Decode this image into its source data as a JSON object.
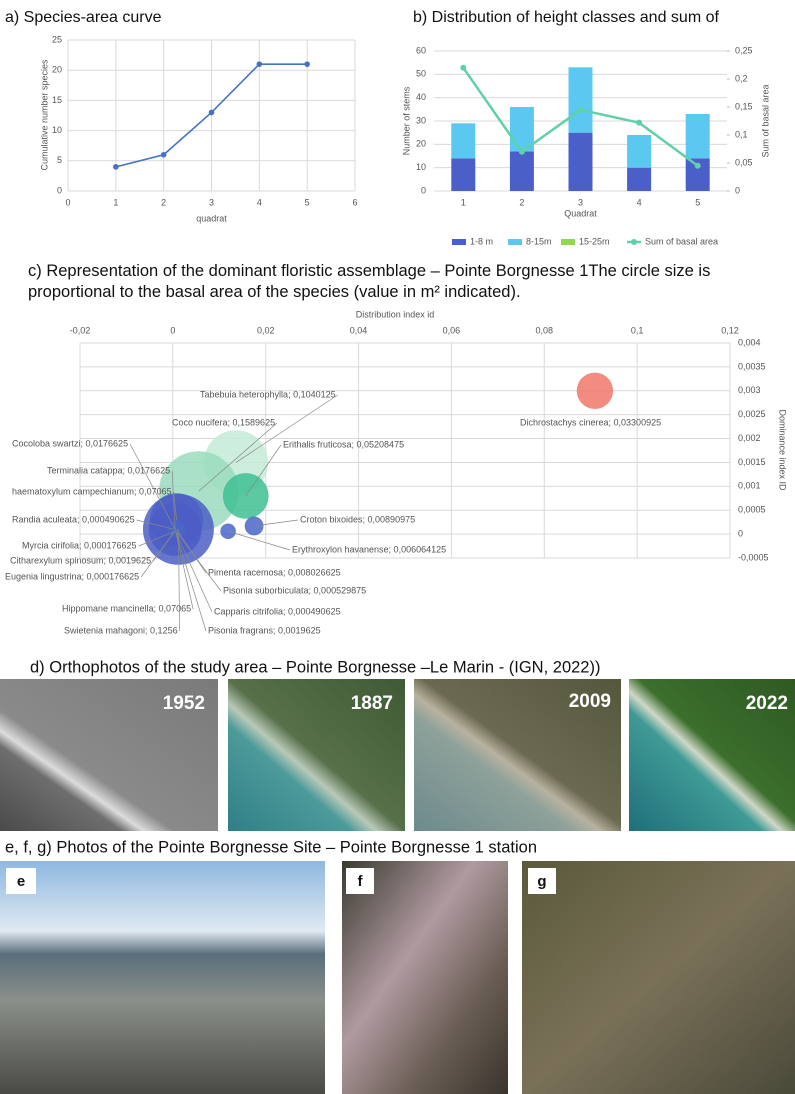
{
  "chart_data": [
    {
      "type": "line",
      "title": "a) Species-area curve",
      "x_label": "quadrat",
      "y_label": "Cumulative number species",
      "x": [
        1,
        2,
        3,
        4,
        5
      ],
      "values": [
        4,
        6,
        13,
        21,
        21
      ],
      "color": "#4472c4",
      "xlim": [
        0,
        6
      ],
      "xticks": [
        0,
        1,
        2,
        3,
        4,
        5,
        6
      ],
      "ylim": [
        0,
        25
      ],
      "yticks": [
        0,
        5,
        10,
        15,
        20,
        25
      ],
      "grid": true
    },
    {
      "type": "bar",
      "title": "b) Distribution of height classes and sum of",
      "x_label": "Quadrat",
      "y_label": "Number of stems",
      "y2_label": "Sum of basal area",
      "categories": [
        "1",
        "2",
        "3",
        "4",
        "5"
      ],
      "series": [
        {
          "name": "1-8 m",
          "color": "#4a5fc8",
          "values": [
            14,
            17,
            25,
            10,
            14
          ]
        },
        {
          "name": "8-15m",
          "color": "#5ac8f0",
          "values": [
            15,
            19,
            28,
            14,
            19
          ]
        },
        {
          "name": "15-25m",
          "color": "#8fd65a",
          "values": [
            0,
            0,
            0,
            0,
            0
          ]
        },
        {
          "name": "Sum of basal area",
          "color": "#5fd0a8",
          "type": "line",
          "axis": "y2",
          "values": [
            0.22,
            0.07,
            0.145,
            0.122,
            0.045
          ]
        }
      ],
      "ylim": [
        0,
        60
      ],
      "yticks": [
        0,
        10,
        20,
        30,
        40,
        50,
        60
      ],
      "y2lim": [
        0,
        0.25
      ],
      "y2ticks": [
        0,
        {
          "value": 0.05,
          "label": "0,05"
        },
        {
          "value": 0.1,
          "label": "0,1"
        },
        {
          "value": 0.15,
          "label": "0,15"
        },
        {
          "value": 0.2,
          "label": "0,2"
        },
        {
          "value": 0.25,
          "label": "0,25"
        }
      ],
      "grid": true,
      "legend": "bottom"
    },
    {
      "type": "bubble",
      "title": "c) Representation of the dominant floristic assemblage – Pointe Borgnesse 1The circle size is proportional to the basal area of the species (value in m² indicated).",
      "x_label": "Distribution index id",
      "y_label": "Dominance index ID",
      "x": [
        0.0136,
        0.0056,
        0.0157,
        0.0005,
        0.0005,
        0.0008,
        0.0003,
        0.0003,
        0.0004,
        0.0003,
        0.0005,
        0.0012,
        0.0006,
        0.0006,
        0.0007,
        0.0008,
        0.0119,
        0.0175,
        0.0909
      ],
      "values": [
        0.0015,
        0.0009,
        0.0008,
        0.0001,
        0.0001,
        0.0003,
        0.0001,
        5e-05,
        5e-05,
        5e-05,
        0.0001,
        0.0001,
        5e-05,
        5e-05,
        5e-05,
        0.0001,
        6e-05,
        0.00017,
        0.003
      ],
      "sizes": [
        0.1040125,
        0.1589625,
        0.05208475,
        0.0176625,
        0.0176625,
        0.07065,
        0.000490625,
        0.000176625,
        0.0019625,
        0.000176625,
        0.07065,
        0.1256,
        0.0019625,
        0.000490625,
        0.000529875,
        0.008026625,
        0.006064125,
        0.00890975,
        0.03300925
      ],
      "colors": [
        "#c5ebd7",
        "#9adbbd",
        "#3fbf93",
        "#6fcfa8",
        "#6fcfa8",
        "#4a66c8",
        "#4a66c8",
        "#4a66c8",
        "#4a66c8",
        "#4a66c8",
        "#3f55c0",
        "#4d5fc6",
        "#4a66c8",
        "#4a66c8",
        "#4a66c8",
        "#4a66c8",
        "#4a66c8",
        "#4a66c8",
        "#f0776a"
      ],
      "point_labels": [
        "Tabebuia heterophylla; 0,1040125",
        "Coco nucifera; 0,1589625",
        "Erithalis fruticosa; 0,05208475",
        "Cocoloba swartzi; 0,0176625",
        "Terminalia catappa; 0,0176625",
        "haematoxylum campechianum; 0,07065",
        "Randia aculeata; 0,000490625",
        "Myrcia cirifolia; 0,000176625",
        "Citharexylum spinosum; 0,0019625",
        "Eugenia lingustrina; 0,000176625",
        "Hippomane mancinella; 0,07065",
        "Swietenia mahagoni; 0,1256",
        "Pisonia fragrans; 0,0019625",
        "Capparis citrifolia; 0,000490625",
        "Pisonia suborbiculata; 0,000529875",
        "Pimenta racemosa; 0,008026625",
        "Erythroxylon havanense; 0,006064125",
        "Croton bixoides; 0,00890975",
        "Dichrostachys cinerea; 0,03300925"
      ],
      "xlim": [
        -0.02,
        0.12
      ],
      "xticks": [
        {
          "value": -0.02,
          "label": "-0,02"
        },
        0,
        {
          "value": 0.02,
          "label": "0,02"
        },
        {
          "value": 0.04,
          "label": "0,04"
        },
        {
          "value": 0.06,
          "label": "0,06"
        },
        {
          "value": 0.08,
          "label": "0,08"
        },
        {
          "value": 0.1,
          "label": "0,1"
        },
        {
          "value": 0.12,
          "label": "0,12"
        }
      ],
      "ylim": [
        -0.0005,
        0.004
      ],
      "yticks": [
        {
          "value": -0.0005,
          "label": "-0,0005"
        },
        0,
        {
          "value": 0.0005,
          "label": "0,0005"
        },
        {
          "value": 0.001,
          "label": "0,001"
        },
        {
          "value": 0.0015,
          "label": "0,0015"
        },
        {
          "value": 0.002,
          "label": "0,002"
        },
        {
          "value": 0.0025,
          "label": "0,0025"
        },
        {
          "value": 0.003,
          "label": "0,003"
        },
        {
          "value": 0.0035,
          "label": "0,0035"
        },
        {
          "value": 0.004,
          "label": "0,004"
        }
      ],
      "grid": true
    }
  ],
  "orthophotos": {
    "title": "d) Orthophotos of the study area – Pointe Borgnesse –Le Marin - (IGN, 2022))",
    "images": [
      {
        "year": "1952"
      },
      {
        "year": "1887"
      },
      {
        "year": "2009"
      },
      {
        "year": "2022"
      }
    ]
  },
  "site_photos": {
    "title": "e, f, g)  Photos of the Pointe Borgnesse Site – Pointe Borgnesse 1 station",
    "images": [
      {
        "label": "e"
      },
      {
        "label": "f"
      },
      {
        "label": "g"
      }
    ]
  }
}
